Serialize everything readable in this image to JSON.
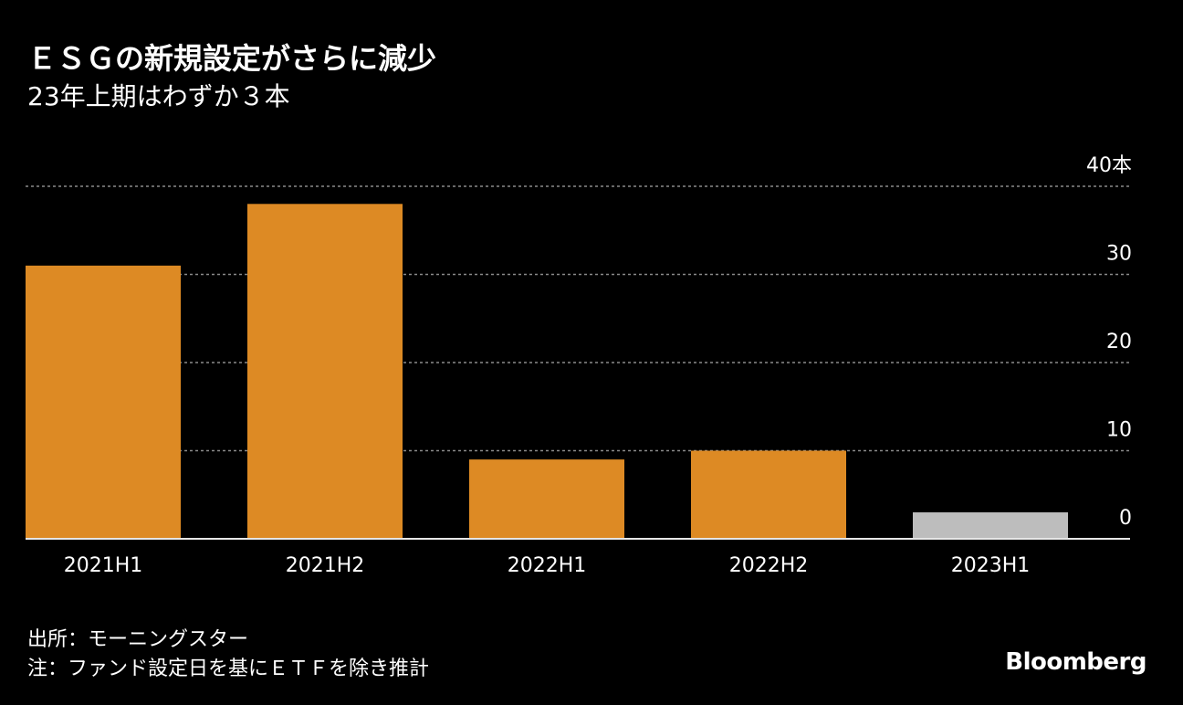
{
  "header": {
    "title": "ＥＳＧの新規設定がさらに減少",
    "subtitle": "23年上期はわずか３本"
  },
  "footer": {
    "source": "出所：モーニングスター",
    "note": "注：ファンド設定日を基にＥＴＦを除き推計",
    "logo": "Bloomberg"
  },
  "colors": {
    "background": "#000000",
    "bar": "#DD8A24",
    "bar_highlight": "#BDBDBD",
    "grid": "#8A8A8A",
    "text": "#FFFFFF"
  },
  "chart_data": {
    "type": "bar",
    "title": "ＥＳＧの新規設定がさらに減少",
    "subtitle": "23年上期はわずか３本",
    "categories": [
      "2021H1",
      "2021H2",
      "2022H1",
      "2022H2",
      "2023H1"
    ],
    "values": [
      31,
      38,
      9,
      10,
      3
    ],
    "highlight_index": 4,
    "ylim": [
      0,
      40
    ],
    "yticks": [
      {
        "value": 0,
        "label": "0"
      },
      {
        "value": 10,
        "label": "10"
      },
      {
        "value": 20,
        "label": "20"
      },
      {
        "value": 30,
        "label": "30"
      },
      {
        "value": 40,
        "label": "40本"
      }
    ],
    "grid": true,
    "axis_side": "right"
  }
}
